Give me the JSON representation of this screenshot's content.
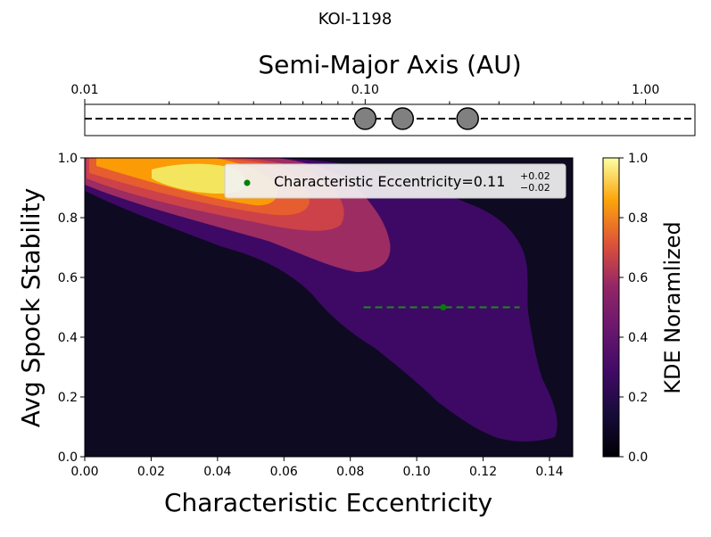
{
  "title": "KOI-1198",
  "chart_data": [
    {
      "type": "scatter",
      "title": "Semi-Major Axis (AU)",
      "xscale": "log",
      "xlim": [
        0.01,
        1.5
      ],
      "xticks": [
        0.01,
        0.1,
        1.0
      ],
      "xtick_labels": [
        "0.01",
        "0.10",
        "1.00"
      ],
      "planets_au": [
        0.1,
        0.136,
        0.232
      ],
      "line_style": "dashed",
      "colors": {
        "planet_fill": "#808080",
        "line": "#000000"
      }
    },
    {
      "type": "heatmap",
      "xlabel": "Characteristic Eccentricity",
      "ylabel": "Avg Spock Stability",
      "xlim": [
        0.0,
        0.147
      ],
      "ylim": [
        0.0,
        1.0
      ],
      "xticks": [
        0.0,
        0.02,
        0.04,
        0.06,
        0.08,
        0.1,
        0.12,
        0.14
      ],
      "xtick_labels": [
        "0.00",
        "0.02",
        "0.04",
        "0.06",
        "0.08",
        "0.10",
        "0.12",
        "0.14"
      ],
      "yticks": [
        0.0,
        0.2,
        0.4,
        0.6,
        0.8,
        1.0
      ],
      "ytick_labels": [
        "0.0",
        "0.2",
        "0.4",
        "0.6",
        "0.8",
        "1.0"
      ],
      "point": {
        "x": 0.108,
        "y": 0.5,
        "xerr_low": 0.024,
        "xerr_high": 0.023
      },
      "legend": {
        "prefix": "Characteristic Eccentricity=0.11",
        "sup": "+0.02",
        "sub": "−0.02",
        "position": "upper-right"
      },
      "colorbar": {
        "label": "KDE Noramlized",
        "ticks": [
          0.0,
          0.2,
          0.4,
          0.6,
          0.8,
          1.0
        ],
        "tick_labels": [
          "0.0",
          "0.2",
          "0.4",
          "0.6",
          "0.8",
          "1.0"
        ],
        "colormap": "inferno"
      },
      "contour_levels": [
        {
          "level": 0.1,
          "color": "#3d0965"
        },
        {
          "level": 0.4,
          "color": "#9c2c62"
        },
        {
          "level": 0.55,
          "color": "#cc4248"
        },
        {
          "level": 0.65,
          "color": "#e65d2f"
        },
        {
          "level": 0.8,
          "color": "#fb9b06"
        },
        {
          "level": 0.9,
          "color": "#f3e55d"
        }
      ],
      "colors": {
        "background": "#0e0a22",
        "marker": "#008000"
      }
    }
  ]
}
